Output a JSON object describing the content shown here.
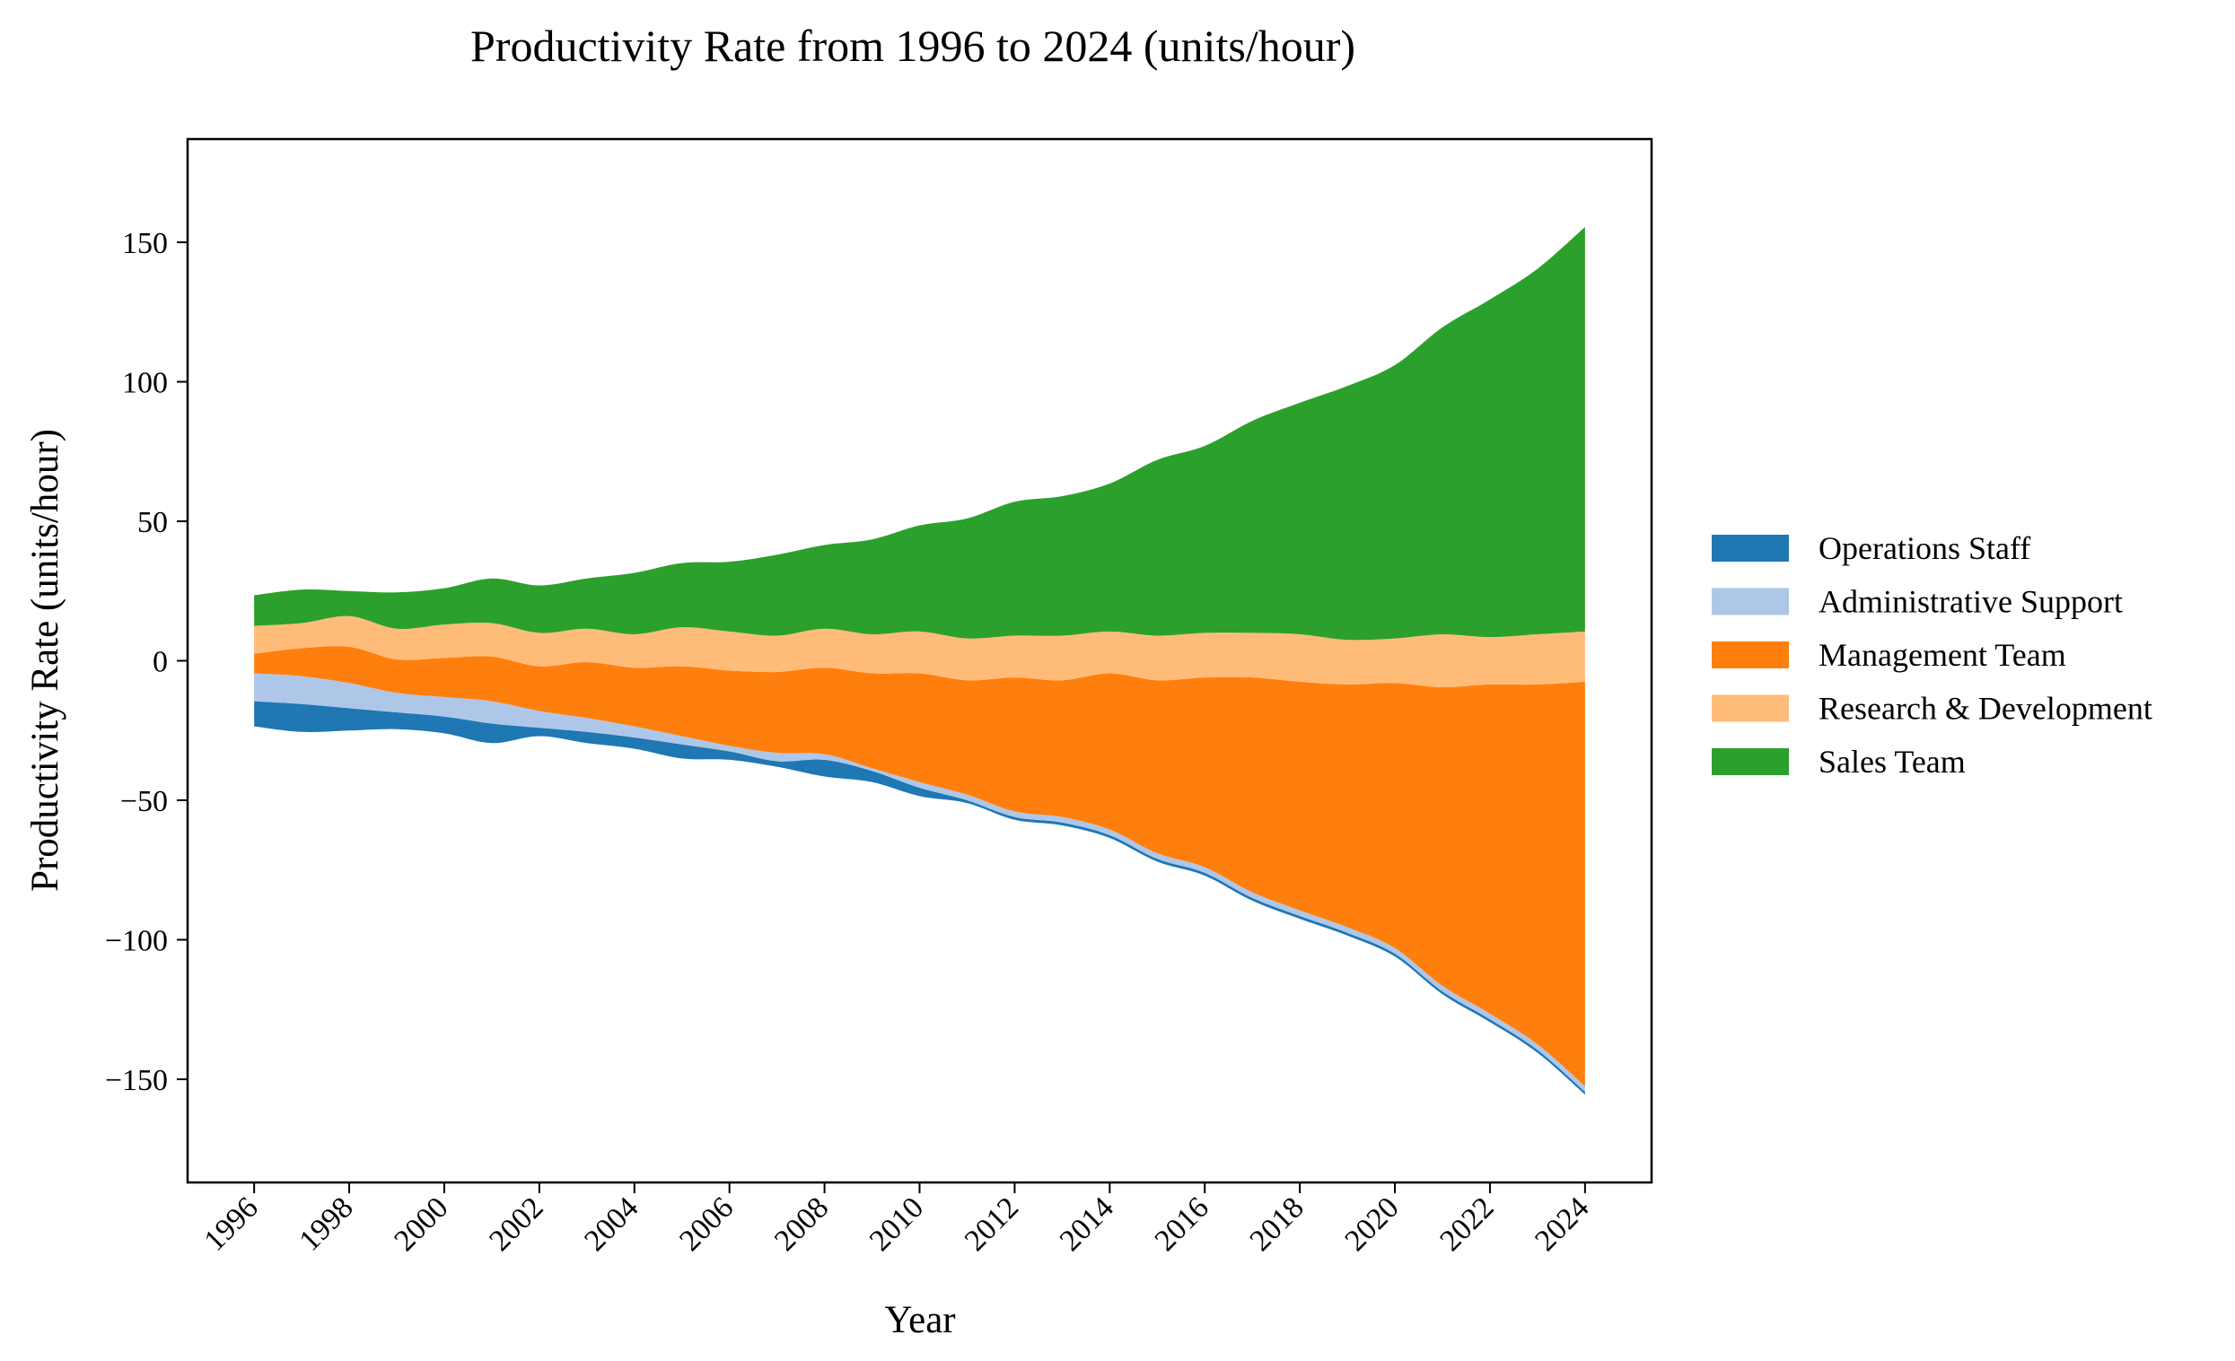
{
  "chart_data": {
    "type": "area",
    "title": "Productivity Rate from 1996 to 2024 (units/hour)",
    "xlabel": "Year",
    "ylabel": "Productivity Rate (units/hour)",
    "xlim": [
      1994.6,
      2025.4
    ],
    "ylim": [
      -187,
      187
    ],
    "xticks": [
      1996,
      1998,
      2000,
      2002,
      2004,
      2006,
      2008,
      2010,
      2012,
      2014,
      2016,
      2018,
      2020,
      2022,
      2024
    ],
    "xtick_labels": [
      "1996",
      "1998",
      "2000",
      "2002",
      "2004",
      "2006",
      "2008",
      "2010",
      "2012",
      "2014",
      "2016",
      "2018",
      "2020",
      "2022",
      "2024"
    ],
    "yticks": [
      -150,
      -100,
      -50,
      0,
      50,
      100,
      150
    ],
    "ytick_labels": [
      "−150",
      "−100",
      "−50",
      "0",
      "50",
      "100",
      "150"
    ],
    "baseline": "symmetric",
    "legend_position": "right",
    "x": [
      1996,
      1997,
      1998,
      1999,
      2000,
      2001,
      2002,
      2003,
      2004,
      2005,
      2006,
      2007,
      2008,
      2009,
      2010,
      2011,
      2012,
      2013,
      2014,
      2015,
      2016,
      2017,
      2018,
      2019,
      2020,
      2021,
      2022,
      2023,
      2024
    ],
    "series": [
      {
        "name": "Operations Staff",
        "color": "#1f77b4",
        "values": [
          9,
          10,
          8,
          6,
          6,
          7,
          3,
          4,
          4,
          5,
          3,
          2,
          6,
          4,
          3,
          1,
          1,
          1,
          1,
          1,
          1,
          1,
          1,
          1,
          1,
          1,
          1,
          1,
          1
        ]
      },
      {
        "name": "Administrative Support",
        "color": "#aec7e8",
        "values": [
          10,
          10,
          9,
          7,
          7,
          8,
          6,
          5,
          4,
          3,
          2,
          3,
          2,
          1,
          2,
          2,
          2,
          2,
          2,
          2,
          2,
          2,
          2,
          2,
          2,
          2,
          2,
          2,
          2
        ]
      },
      {
        "name": "Management Team",
        "color": "#ff7f0e",
        "values": [
          7,
          10,
          13,
          12,
          14,
          16,
          16,
          20,
          21,
          25,
          27,
          29,
          31,
          34,
          39,
          41,
          48,
          49,
          56,
          62,
          68,
          77,
          82,
          87,
          95,
          107,
          118,
          129,
          145
        ]
      },
      {
        "name": "Research & Development",
        "color": "#ffbb78",
        "values": [
          10,
          9,
          11,
          11,
          12,
          12,
          12,
          12,
          12,
          14,
          14,
          13,
          14,
          14,
          15,
          15,
          15,
          16,
          15,
          16,
          16,
          16,
          17,
          16,
          16,
          19,
          17,
          18,
          18
        ]
      },
      {
        "name": "Sales Team",
        "color": "#2ca02c",
        "values": [
          11,
          12,
          9,
          13,
          13,
          16,
          17,
          18,
          22,
          23,
          25,
          29,
          30,
          34,
          38,
          43,
          48,
          50,
          53,
          63,
          67,
          76,
          83,
          91,
          98,
          110,
          121,
          131,
          145
        ]
      }
    ]
  }
}
